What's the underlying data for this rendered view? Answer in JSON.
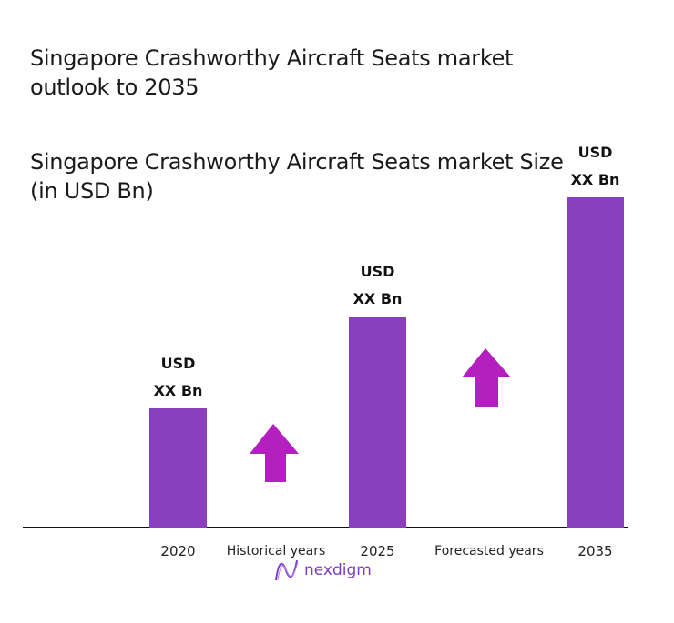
{
  "chart_data": {
    "type": "bar",
    "title": "Singapore Crashworthy Aircraft Seats market outlook to 2035",
    "subtitle": "Singapore Crashworthy Aircraft Seats market Size (in USD Bn)",
    "categories": [
      "2020",
      "2025",
      "2035"
    ],
    "values": [
      null,
      null,
      null
    ],
    "data_labels": [
      [
        "USD",
        "XX Bn"
      ],
      [
        "USD",
        "XX Bn"
      ],
      [
        "USD",
        "XX Bn"
      ]
    ],
    "annotations": [
      "Historical years",
      "Forecasted years"
    ],
    "trend": "increasing",
    "grid": false,
    "legend": "none"
  },
  "colors": {
    "bar": "#8a40bd",
    "arrow": "#b41fbf",
    "baseline": "#111111"
  },
  "logo": {
    "text": "nexdigm",
    "icon": "nexdigm-wave-logo"
  }
}
